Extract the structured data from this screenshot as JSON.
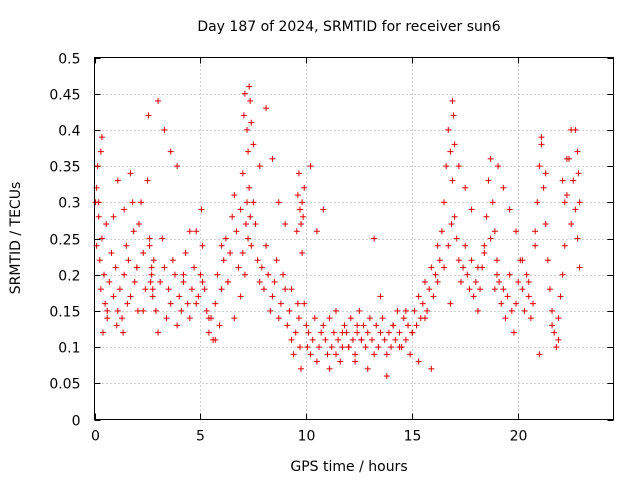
{
  "chart_data": {
    "type": "scatter",
    "title": "Day 187 of 2024, SRMTID for receiver sun6",
    "xlabel": "GPS time / hours",
    "ylabel": "SRMTID / TECUs",
    "xlim": [
      0,
      24.5
    ],
    "ylim": [
      0,
      0.5
    ],
    "x_ticks": [
      0,
      5,
      10,
      15,
      20
    ],
    "y_ticks": [
      0,
      0.05,
      0.1,
      0.15,
      0.2,
      0.25,
      0.3,
      0.35,
      0.4,
      0.45,
      0.5
    ],
    "x_tick_labels": [
      "0",
      "5",
      "10",
      "15",
      "20"
    ],
    "y_tick_labels": [
      "0",
      "0.05",
      "0.1",
      "0.15",
      "0.2",
      "0.25",
      "0.3",
      "0.35",
      "0.4",
      "0.45",
      "0.5"
    ],
    "grid": true,
    "marker": "+",
    "color": "#e00000",
    "series": [
      {
        "name": "SRMTID",
        "x": [
          0.05,
          0.1,
          0.15,
          0.2,
          0.25,
          0.3,
          0.35,
          0.4,
          0.45,
          0.5,
          0.55,
          0.6,
          0.7,
          0.8,
          0.9,
          1.0,
          1.05,
          1.1,
          1.2,
          1.3,
          1.35,
          1.4,
          1.5,
          1.55,
          1.6,
          1.7,
          1.8,
          1.85,
          1.9,
          2.0,
          2.05,
          2.1,
          2.2,
          2.3,
          2.4,
          2.5,
          2.55,
          2.6,
          2.7,
          2.75,
          2.8,
          2.9,
          3.0,
          3.1,
          3.2,
          3.3,
          3.4,
          3.5,
          3.6,
          3.7,
          3.8,
          3.9,
          4.0,
          4.1,
          4.2,
          4.3,
          4.4,
          4.5,
          4.6,
          4.7,
          4.8,
          4.9,
          5.0,
          5.05,
          5.1,
          5.2,
          5.3,
          5.4,
          5.5,
          5.6,
          5.7,
          5.8,
          5.9,
          6.0,
          6.1,
          6.2,
          6.3,
          6.4,
          6.5,
          6.6,
          6.7,
          6.8,
          6.9,
          7.0,
          7.05,
          7.1,
          7.2,
          7.25,
          7.3,
          7.35,
          7.4,
          7.5,
          7.6,
          7.7,
          7.8,
          7.9,
          8.0,
          8.1,
          8.2,
          8.3,
          8.4,
          8.5,
          8.6,
          8.7,
          8.8,
          8.9,
          9.0,
          9.1,
          9.2,
          9.3,
          9.4,
          9.5,
          9.55,
          9.6,
          9.65,
          9.7,
          9.75,
          9.8,
          9.9,
          10.0,
          10.05,
          10.1,
          10.2,
          10.3,
          10.4,
          10.5,
          10.6,
          10.7,
          10.8,
          10.9,
          11.0,
          11.1,
          11.2,
          11.3,
          11.4,
          11.5,
          11.6,
          11.7,
          11.8,
          11.9,
          12.0,
          12.1,
          12.2,
          12.3,
          12.4,
          12.5,
          12.6,
          12.7,
          12.8,
          12.9,
          13.0,
          13.1,
          13.2,
          13.3,
          13.4,
          13.5,
          13.6,
          13.7,
          13.8,
          13.9,
          14.0,
          14.1,
          14.2,
          14.3,
          14.4,
          14.5,
          14.6,
          14.7,
          14.8,
          14.9,
          15.0,
          15.1,
          15.2,
          15.3,
          15.4,
          15.5,
          15.6,
          15.7,
          15.8,
          15.9,
          16.0,
          16.1,
          16.2,
          16.3,
          16.4,
          16.5,
          16.6,
          16.7,
          16.8,
          16.9,
          17.0,
          17.1,
          17.2,
          17.3,
          17.4,
          17.5,
          17.6,
          17.7,
          17.8,
          17.9,
          18.0,
          18.1,
          18.2,
          18.3,
          18.4,
          18.5,
          18.6,
          18.7,
          18.8,
          18.9,
          19.0,
          19.1,
          19.2,
          19.3,
          19.4,
          19.5,
          19.6,
          19.7,
          19.8,
          19.9,
          20.0,
          20.1,
          20.2,
          20.3,
          20.4,
          20.5,
          20.6,
          20.7,
          20.8,
          20.9,
          21.0,
          21.1,
          21.2,
          21.3,
          21.4,
          21.5,
          21.6,
          21.7,
          21.8,
          21.9,
          22.0,
          22.1,
          22.2,
          22.3,
          22.4,
          22.5,
          22.6,
          22.7,
          22.8,
          22.9,
          0.1,
          0.2,
          0.3,
          0.35,
          0.6,
          0.9,
          1.1,
          1.4,
          1.7,
          2.0,
          2.3,
          2.6,
          2.65,
          2.7,
          2.75,
          3.0,
          3.3,
          3.6,
          3.9,
          4.2,
          4.5,
          4.8,
          5.1,
          5.4,
          5.7,
          6.0,
          6.3,
          6.6,
          6.9,
          7.0,
          7.1,
          7.15,
          7.2,
          7.25,
          7.3,
          7.35,
          7.4,
          7.5,
          7.8,
          8.1,
          8.4,
          8.7,
          9.0,
          9.3,
          9.6,
          9.65,
          9.7,
          9.75,
          9.8,
          9.85,
          9.9,
          10.2,
          10.5,
          10.8,
          11.1,
          11.4,
          11.7,
          12.0,
          12.3,
          12.4,
          12.6,
          12.9,
          13.2,
          13.5,
          13.8,
          14.1,
          14.4,
          14.7,
          15.0,
          15.3,
          15.6,
          15.9,
          16.2,
          16.5,
          16.7,
          16.8,
          16.85,
          16.9,
          16.95,
          17.0,
          17.2,
          17.5,
          17.8,
          18.1,
          18.4,
          18.7,
          18.9,
          19.0,
          19.05,
          19.3,
          19.6,
          19.9,
          20.2,
          20.5,
          20.8,
          21.0,
          21.1,
          21.3,
          21.6,
          21.9,
          22.1,
          22.2,
          22.3,
          22.5,
          22.7,
          22.8,
          22.85,
          22.9
        ],
        "y": [
          0.3,
          0.32,
          0.35,
          0.28,
          0.22,
          0.18,
          0.25,
          0.12,
          0.2,
          0.16,
          0.27,
          0.14,
          0.19,
          0.23,
          0.17,
          0.21,
          0.13,
          0.15,
          0.18,
          0.14,
          0.12,
          0.2,
          0.24,
          0.16,
          0.22,
          0.34,
          0.3,
          0.26,
          0.19,
          0.21,
          0.15,
          0.27,
          0.3,
          0.23,
          0.18,
          0.33,
          0.42,
          0.25,
          0.2,
          0.17,
          0.22,
          0.15,
          0.12,
          0.19,
          0.25,
          0.21,
          0.14,
          0.18,
          0.16,
          0.22,
          0.2,
          0.13,
          0.17,
          0.15,
          0.19,
          0.23,
          0.16,
          0.14,
          0.18,
          0.21,
          0.26,
          0.17,
          0.2,
          0.29,
          0.24,
          0.18,
          0.15,
          0.12,
          0.14,
          0.11,
          0.16,
          0.2,
          0.13,
          0.18,
          0.22,
          0.25,
          0.19,
          0.23,
          0.28,
          0.31,
          0.26,
          0.21,
          0.29,
          0.34,
          0.42,
          0.45,
          0.4,
          0.37,
          0.32,
          0.28,
          0.24,
          0.3,
          0.27,
          0.22,
          0.19,
          0.21,
          0.18,
          0.24,
          0.2,
          0.15,
          0.17,
          0.19,
          0.22,
          0.14,
          0.16,
          0.2,
          0.18,
          0.13,
          0.15,
          0.11,
          0.09,
          0.12,
          0.26,
          0.31,
          0.34,
          0.29,
          0.27,
          0.23,
          0.16,
          0.13,
          0.1,
          0.12,
          0.09,
          0.11,
          0.14,
          0.08,
          0.1,
          0.12,
          0.13,
          0.11,
          0.09,
          0.14,
          0.1,
          0.12,
          0.15,
          0.11,
          0.08,
          0.1,
          0.13,
          0.12,
          0.1,
          0.14,
          0.11,
          0.09,
          0.12,
          0.15,
          0.11,
          0.13,
          0.1,
          0.12,
          0.14,
          0.11,
          0.09,
          0.13,
          0.1,
          0.12,
          0.14,
          0.11,
          0.09,
          0.12,
          0.1,
          0.13,
          0.11,
          0.15,
          0.12,
          0.1,
          0.14,
          0.11,
          0.13,
          0.09,
          0.12,
          0.15,
          0.13,
          0.17,
          0.14,
          0.16,
          0.19,
          0.15,
          0.18,
          0.21,
          0.17,
          0.2,
          0.24,
          0.22,
          0.26,
          0.3,
          0.35,
          0.4,
          0.37,
          0.33,
          0.28,
          0.25,
          0.22,
          0.19,
          0.21,
          0.24,
          0.2,
          0.18,
          0.22,
          0.17,
          0.19,
          0.15,
          0.18,
          0.21,
          0.24,
          0.28,
          0.33,
          0.36,
          0.3,
          0.26,
          0.22,
          0.19,
          0.16,
          0.18,
          0.14,
          0.17,
          0.2,
          0.15,
          0.12,
          0.16,
          0.19,
          0.22,
          0.18,
          0.15,
          0.2,
          0.17,
          0.14,
          0.16,
          0.26,
          0.3,
          0.35,
          0.39,
          0.32,
          0.27,
          0.22,
          0.18,
          0.15,
          0.12,
          0.1,
          0.14,
          0.17,
          0.2,
          0.24,
          0.31,
          0.36,
          0.4,
          0.33,
          0.29,
          0.25,
          0.21,
          0.24,
          0.3,
          0.37,
          0.39,
          0.15,
          0.28,
          0.33,
          0.29,
          0.17,
          0.21,
          0.15,
          0.24,
          0.19,
          0.21,
          0.18,
          0.44,
          0.4,
          0.37,
          0.35,
          0.2,
          0.26,
          0.16,
          0.19,
          0.14,
          0.11,
          0.24,
          0.19,
          0.14,
          0.17,
          0.23,
          0.2,
          0.27,
          0.3,
          0.25,
          0.46,
          0.44,
          0.41,
          0.38,
          0.35,
          0.43,
          0.36,
          0.3,
          0.27,
          0.18,
          0.16,
          0.14,
          0.1,
          0.07,
          0.3,
          0.28,
          0.32,
          0.35,
          0.26,
          0.29,
          0.07,
          0.09,
          0.12,
          0.1,
          0.08,
          0.13,
          0.11,
          0.07,
          0.25,
          0.17,
          0.06,
          0.13,
          0.1,
          0.15,
          0.12,
          0.08,
          0.14,
          0.07,
          0.19,
          0.21,
          0.24,
          0.16,
          0.27,
          0.44,
          0.42,
          0.38,
          0.35,
          0.32,
          0.29,
          0.21,
          0.23,
          0.25,
          0.18,
          0.2,
          0.35,
          0.32,
          0.29,
          0.26,
          0.22,
          0.19,
          0.24,
          0.09,
          0.38,
          0.34,
          0.13,
          0.11,
          0.33,
          0.3,
          0.36,
          0.27,
          0.4,
          0.37,
          0.34,
          0.3
        ]
      }
    ]
  }
}
